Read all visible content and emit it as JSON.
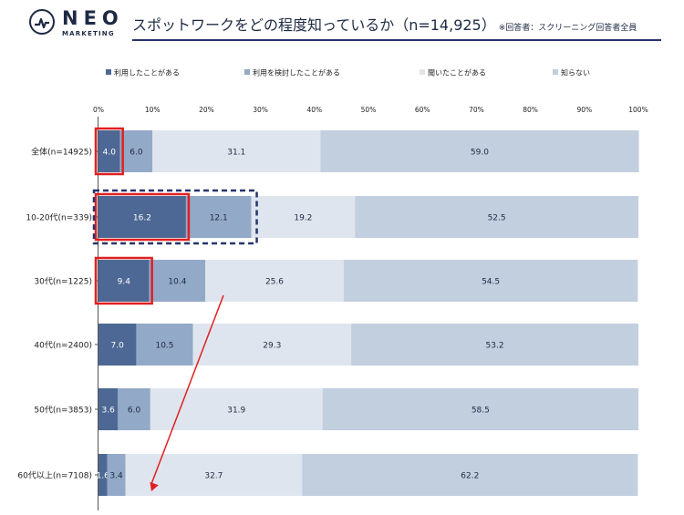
{
  "header": {
    "logo_main": "NEO",
    "logo_sub": "MARKETING",
    "title": "スポットワークをどの程度知っているか（n=14,925）",
    "note": "※回答者：スクリーニング回答者全員"
  },
  "colors": {
    "accent": "#26346b",
    "highlight": "#e02020",
    "arrow": "#e02020"
  },
  "chart_data": {
    "type": "bar",
    "orientation": "horizontal",
    "stacked": true,
    "categories": [
      "全体(n=14925)",
      "10-20代(n=339)",
      "30代(n=1225)",
      "40代(n=2400)",
      "50代(n=3853)",
      "60代以上(n=7108)"
    ],
    "series": [
      {
        "name": "利用したことがある",
        "color": "#4d6894",
        "values": [
          4.0,
          16.2,
          9.4,
          7.0,
          3.6,
          1.6
        ]
      },
      {
        "name": "利用を検討したことがある",
        "color": "#93a9c8",
        "values": [
          6.0,
          12.1,
          10.4,
          10.5,
          6.0,
          3.4
        ]
      },
      {
        "name": "聞いたことがある",
        "color": "#dfe5ee",
        "values": [
          31.1,
          19.2,
          25.6,
          29.3,
          31.9,
          32.7
        ]
      },
      {
        "name": "知らない",
        "color": "#c2cfdf",
        "values": [
          59.0,
          52.5,
          54.5,
          53.2,
          58.5,
          62.2
        ]
      }
    ],
    "value_labels": [
      [
        "4.0",
        "6.0",
        "31.1",
        "59.0"
      ],
      [
        "16.2",
        "12.1",
        "19.2",
        "52.5"
      ],
      [
        "9.4",
        "10.4",
        "25.6",
        "54.5"
      ],
      [
        "7.0",
        "10.5",
        "29.3",
        "53.2"
      ],
      [
        "3.6",
        "6.0",
        "31.9",
        "58.5"
      ],
      [
        "1.6",
        "3.4",
        "32.7",
        "62.2"
      ]
    ],
    "xticks": [
      "0%",
      "10%",
      "20%",
      "30%",
      "40%",
      "50%",
      "60%",
      "70%",
      "80%",
      "90%",
      "100%"
    ],
    "xlim": [
      0,
      100
    ],
    "legend_position": "top",
    "grid": false,
    "highlights": [
      {
        "type": "red-box",
        "category_index": 0,
        "series_index": 0
      },
      {
        "type": "red-box",
        "category_index": 1,
        "series_index": 0
      },
      {
        "type": "red-box",
        "category_index": 2,
        "series_index": 0
      },
      {
        "type": "dashed-navy-box",
        "category_index": 1,
        "series_indices": [
          0,
          1
        ]
      },
      {
        "type": "red-arrow",
        "from_category_index": 2,
        "to_category_index": 5
      }
    ]
  }
}
